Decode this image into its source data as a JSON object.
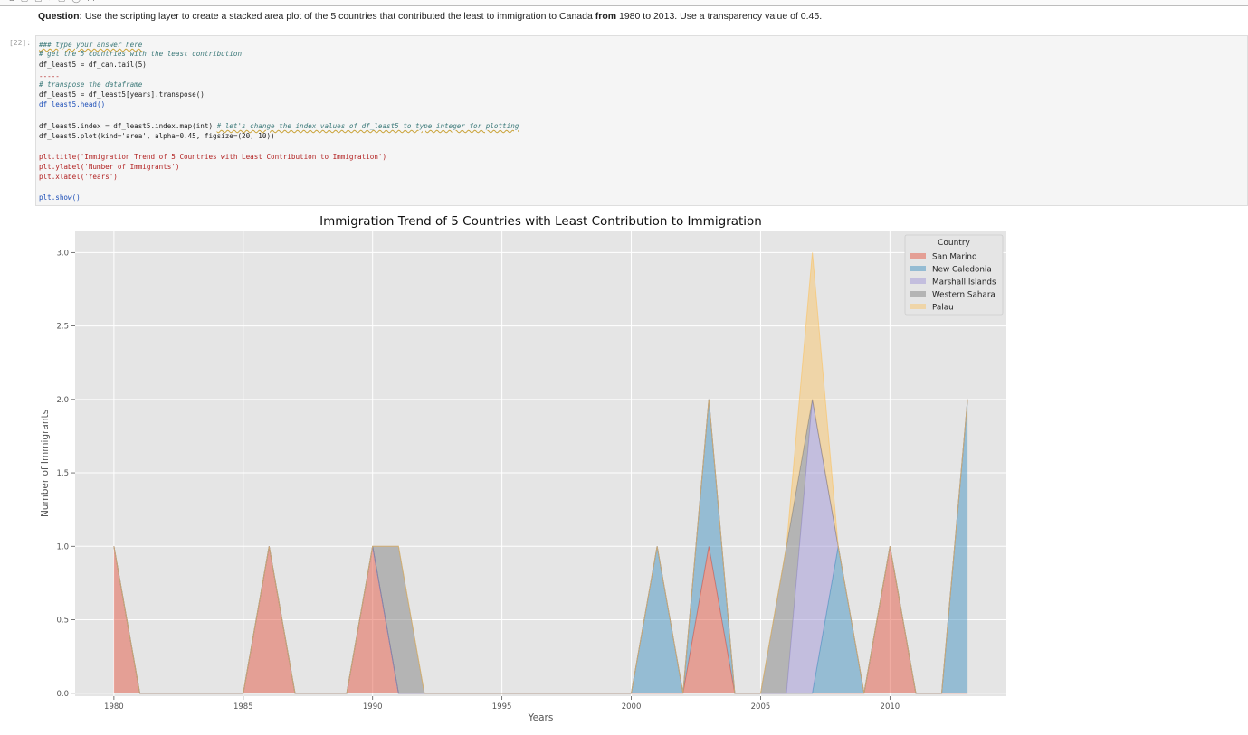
{
  "question": {
    "label": "Question:",
    "text_part1": " Use the scripting layer to create a stacked area plot of the 5 countries that contributed the least to immigration to Canada ",
    "bold": "from",
    "text_part2": " 1980 to 2013. Use a transparency value of 0.45."
  },
  "cell": {
    "prompt": "[22]:",
    "lines": {
      "c0": "### type your answer here",
      "c1": "# get the 5 countries with the least contribution",
      "c2": "df_least5 = df_can.tail(5)",
      "c3": "-----",
      "c4": "# transpose the dataframe",
      "c5": "df_least5 = df_least5[years].transpose()",
      "c6": "df_least5.head()",
      "c7a": "df_least5.index = df_least5.index.map(int) ",
      "c7b": "# let's change the index values of df_least5 to type integer for plotting",
      "c8": "df_least5.plot(kind='area', alpha=0.45, figsize=(20, 10))",
      "c9": "plt.title('Immigration Trend of 5 Countries with Least Contribution to Immigration')",
      "c10": "plt.ylabel('Number of Immigrants')",
      "c11": "plt.xlabel('Years')",
      "c12": "plt.show()"
    }
  },
  "colors": {
    "plot_bg": "#e5e5e5",
    "grid": "#ffffff",
    "San Marino": "#e24a33",
    "New Caledonia": "#348abd",
    "Marshall Islands": "#988ed5",
    "Western Sahara": "#777777",
    "Palau": "#fbc15e"
  },
  "chart_data": {
    "type": "area",
    "stacked": true,
    "alpha": 0.45,
    "title": "Immigration Trend of 5 Countries with Least Contribution to Immigration",
    "xlabel": "Years",
    "ylabel": "Number of Immigrants",
    "xlim": [
      1978.5,
      2014.5
    ],
    "ylim": [
      -0.02,
      3.15
    ],
    "xticks": [
      1980,
      1985,
      1990,
      1995,
      2000,
      2005,
      2010
    ],
    "yticks": [
      "0.0",
      "0.5",
      "1.0",
      "1.5",
      "2.0",
      "2.5",
      "3.0"
    ],
    "legend_title": "Country",
    "legend_position": "top-right",
    "grid": true,
    "x": [
      1980,
      1981,
      1982,
      1983,
      1984,
      1985,
      1986,
      1987,
      1988,
      1989,
      1990,
      1991,
      1992,
      1993,
      1994,
      1995,
      1996,
      1997,
      1998,
      1999,
      2000,
      2001,
      2002,
      2003,
      2004,
      2005,
      2006,
      2007,
      2008,
      2009,
      2010,
      2011,
      2012,
      2013
    ],
    "series": [
      {
        "name": "San Marino",
        "values": [
          1,
          0,
          0,
          0,
          0,
          0,
          1,
          0,
          0,
          0,
          1,
          0,
          0,
          0,
          0,
          0,
          0,
          0,
          0,
          0,
          0,
          0,
          0,
          1,
          0,
          0,
          0,
          0,
          0,
          0,
          1,
          0,
          0,
          0
        ]
      },
      {
        "name": "New Caledonia",
        "values": [
          0,
          0,
          0,
          0,
          0,
          0,
          0,
          0,
          0,
          0,
          0,
          0,
          0,
          0,
          0,
          0,
          0,
          0,
          0,
          0,
          0,
          1,
          0,
          1,
          0,
          0,
          0,
          0,
          1,
          0,
          0,
          0,
          0,
          2
        ]
      },
      {
        "name": "Marshall Islands",
        "values": [
          0,
          0,
          0,
          0,
          0,
          0,
          0,
          0,
          0,
          0,
          0,
          0,
          0,
          0,
          0,
          0,
          0,
          0,
          0,
          0,
          0,
          0,
          0,
          0,
          0,
          0,
          0,
          2,
          0,
          0,
          0,
          0,
          0,
          0
        ]
      },
      {
        "name": "Western Sahara",
        "values": [
          0,
          0,
          0,
          0,
          0,
          0,
          0,
          0,
          0,
          0,
          0,
          1,
          0,
          0,
          0,
          0,
          0,
          0,
          0,
          0,
          0,
          0,
          0,
          0,
          0,
          0,
          1,
          0,
          0,
          0,
          0,
          0,
          0,
          0
        ]
      },
      {
        "name": "Palau",
        "values": [
          0,
          0,
          0,
          0,
          0,
          0,
          0,
          0,
          0,
          0,
          0,
          0,
          0,
          0,
          0,
          0,
          0,
          0,
          0,
          0,
          0,
          0,
          0,
          0,
          0,
          0,
          0,
          1,
          0,
          0,
          0,
          0,
          0,
          0
        ]
      }
    ]
  }
}
